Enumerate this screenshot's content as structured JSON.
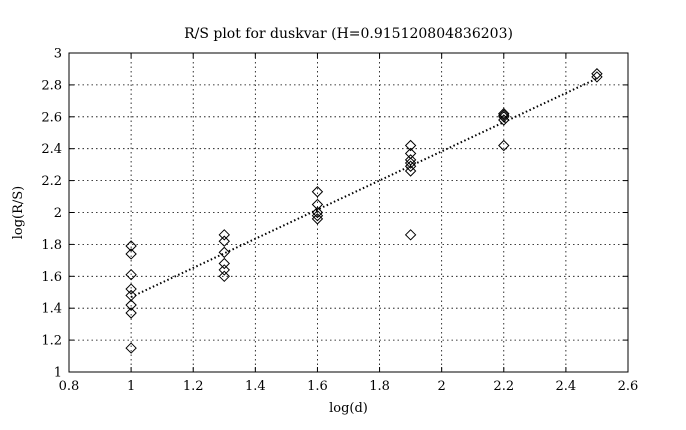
{
  "chart_data": {
    "type": "scatter",
    "title": "R/S plot for duskvar (H=0.915120804836203)",
    "xlabel": "log(d)",
    "ylabel": "log(R/S)",
    "xlim": [
      0.8,
      2.6
    ],
    "ylim": [
      1,
      3
    ],
    "xticks": [
      "0.8",
      "1",
      "1.2",
      "1.4",
      "1.6",
      "1.8",
      "2",
      "2.2",
      "2.4",
      "2.6"
    ],
    "yticks": [
      "1",
      "1.2",
      "1.4",
      "1.6",
      "1.8",
      "2",
      "2.2",
      "2.4",
      "2.6",
      "2.8",
      "3"
    ],
    "grid": true,
    "marker": "diamond",
    "marker_color": "#000000",
    "fit_line": {
      "style": "dotted",
      "x": [
        1.0,
        2.5
      ],
      "y": [
        1.47,
        2.84
      ]
    },
    "points": [
      {
        "x": 1.0,
        "y": 1.15
      },
      {
        "x": 1.0,
        "y": 1.37
      },
      {
        "x": 1.0,
        "y": 1.42
      },
      {
        "x": 1.0,
        "y": 1.48
      },
      {
        "x": 1.0,
        "y": 1.52
      },
      {
        "x": 1.0,
        "y": 1.61
      },
      {
        "x": 1.0,
        "y": 1.74
      },
      {
        "x": 1.0,
        "y": 1.79
      },
      {
        "x": 1.3,
        "y": 1.6
      },
      {
        "x": 1.3,
        "y": 1.64
      },
      {
        "x": 1.3,
        "y": 1.68
      },
      {
        "x": 1.3,
        "y": 1.75
      },
      {
        "x": 1.3,
        "y": 1.82
      },
      {
        "x": 1.3,
        "y": 1.86
      },
      {
        "x": 1.6,
        "y": 1.96
      },
      {
        "x": 1.6,
        "y": 1.98
      },
      {
        "x": 1.6,
        "y": 2.0
      },
      {
        "x": 1.6,
        "y": 2.05
      },
      {
        "x": 1.6,
        "y": 2.13
      },
      {
        "x": 1.9,
        "y": 1.86
      },
      {
        "x": 1.9,
        "y": 2.26
      },
      {
        "x": 1.9,
        "y": 2.29
      },
      {
        "x": 1.9,
        "y": 2.31
      },
      {
        "x": 1.9,
        "y": 2.33
      },
      {
        "x": 1.9,
        "y": 2.37
      },
      {
        "x": 1.9,
        "y": 2.42
      },
      {
        "x": 2.2,
        "y": 2.42
      },
      {
        "x": 2.2,
        "y": 2.58
      },
      {
        "x": 2.2,
        "y": 2.6
      },
      {
        "x": 2.2,
        "y": 2.61
      },
      {
        "x": 2.2,
        "y": 2.62
      },
      {
        "x": 2.5,
        "y": 2.85
      },
      {
        "x": 2.5,
        "y": 2.87
      }
    ]
  }
}
